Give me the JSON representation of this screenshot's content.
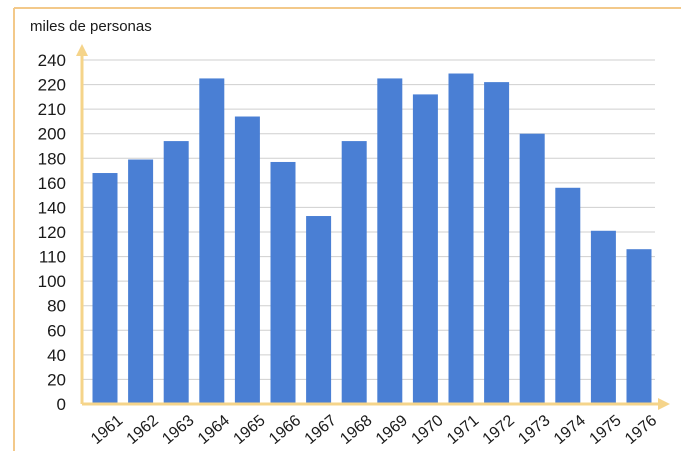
{
  "chart_data": {
    "type": "bar",
    "title": "",
    "xlabel": "",
    "ylabel": "miles de personas",
    "categories": [
      "1961",
      "1962",
      "1963",
      "1964",
      "1965",
      "1966",
      "1967",
      "1968",
      "1969",
      "1970",
      "1971",
      "1972",
      "1973",
      "1974",
      "1975",
      "1976"
    ],
    "values": [
      168,
      179,
      194,
      225,
      207,
      177,
      133,
      194,
      225,
      216,
      229,
      222,
      200,
      156,
      121,
      113
    ],
    "y_ticks": [
      "0",
      "20",
      "40",
      "60",
      "80",
      "100",
      "110",
      "120",
      "140",
      "160",
      "180",
      "200",
      "210",
      "220",
      "240"
    ],
    "ylim": [
      0,
      240
    ],
    "grid": true,
    "legend": "none",
    "colors": {
      "bar": "#4a7fd4",
      "axis": "#f5d48a",
      "grid": "#cfcfcf",
      "frame": "#f3c98a",
      "text": "#1a1a1a"
    }
  }
}
